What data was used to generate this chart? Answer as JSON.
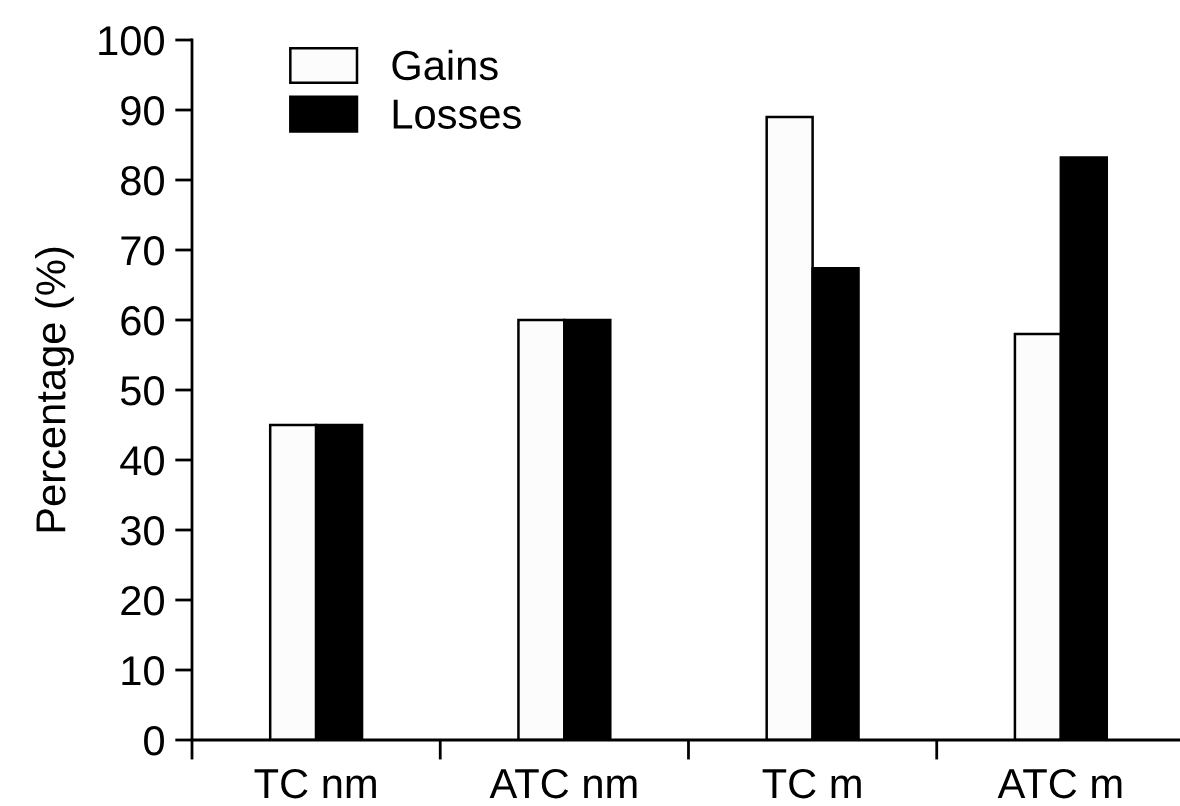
{
  "chart_data": {
    "type": "bar",
    "ylabel": "Percentage (%)",
    "categories": [
      "TC nm",
      "ATC nm",
      "TC m",
      "ATC m"
    ],
    "series": [
      {
        "name": "Gains",
        "color": "#fcfcfc",
        "values": [
          45,
          60,
          89,
          58
        ]
      },
      {
        "name": "Losses",
        "color": "#000000",
        "values": [
          45,
          60,
          67.4,
          83.2
        ]
      }
    ],
    "ylim": [
      0,
      100
    ],
    "yticks": [
      0,
      10,
      20,
      30,
      40,
      50,
      60,
      70,
      80,
      90,
      100
    ],
    "grid": false,
    "legend": "top left"
  }
}
